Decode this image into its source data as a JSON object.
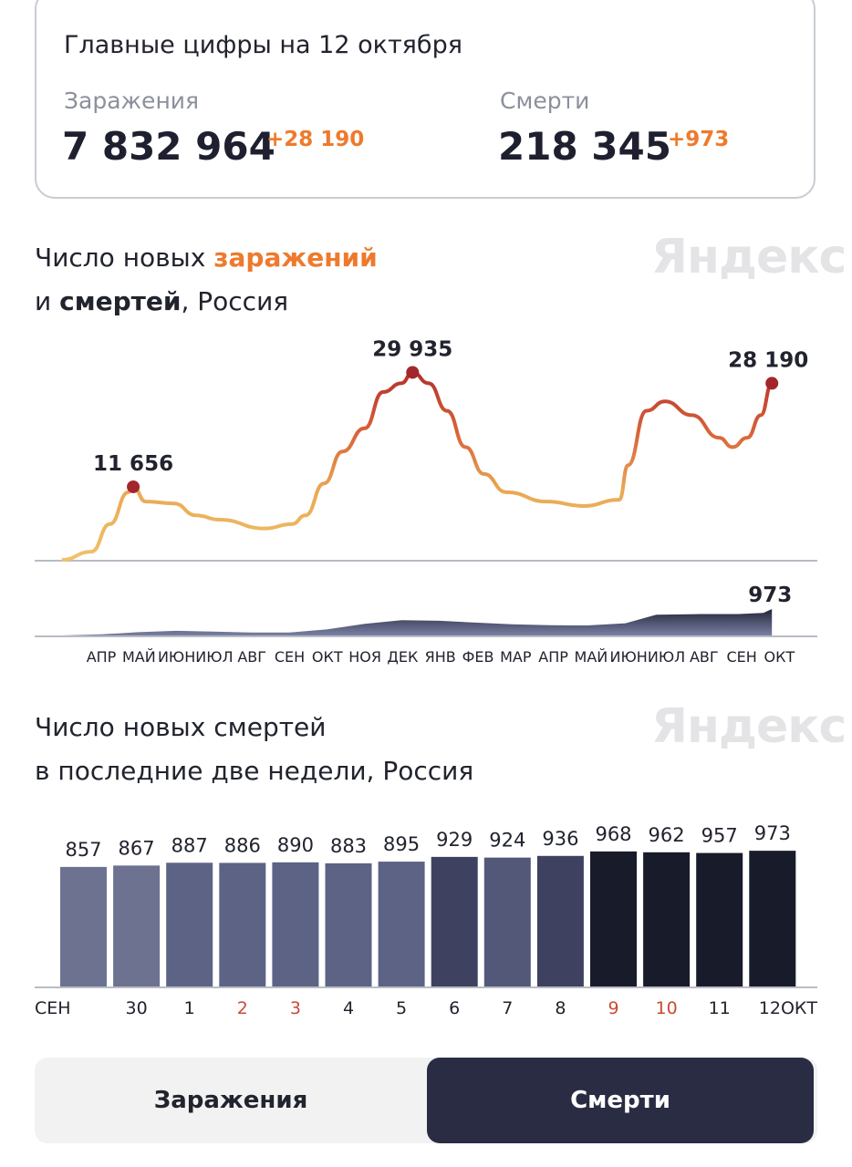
{
  "summary": {
    "title": "Главные цифры на 12 октября",
    "infections_label": "Заражения",
    "infections_total": "7 832 964",
    "infections_delta": "+28 190",
    "deaths_label": "Смерти",
    "deaths_total": "218 345",
    "deaths_delta": "+973"
  },
  "watermark": "Яндекс",
  "chart1_title": {
    "part1": "Число новых ",
    "part2": "заражений",
    "part3": "и ",
    "part4": "смертей",
    "part5": ", Россия"
  },
  "chart2_title": {
    "line1": "Число новых смертей",
    "line2": "в последние две недели, Россия"
  },
  "colors": {
    "accent": "#ee7a2d",
    "line_low": "#e9b865",
    "line_high": "#b8302a",
    "marker": "#a3262a",
    "deaths_area": "#3f4466",
    "active_button": "#2a2c44"
  },
  "chart_data": [
    {
      "type": "line",
      "series": [
        {
          "name": "заражений",
          "points": [
            [
              "2020-03-14",
              0
            ],
            [
              "2020-04-07",
              1300
            ],
            [
              "2020-04-22",
              5700
            ],
            [
              "2020-05-07",
              10800
            ],
            [
              "2020-05-11",
              11656
            ],
            [
              "2020-05-21",
              9300
            ],
            [
              "2020-06-13",
              9000
            ],
            [
              "2020-07-01",
              7100
            ],
            [
              "2020-07-20",
              6400
            ],
            [
              "2020-08-26",
              5000
            ],
            [
              "2020-09-17",
              5700
            ],
            [
              "2020-09-28",
              7100
            ],
            [
              "2020-10-13",
              12200
            ],
            [
              "2020-10-28",
              17300
            ],
            [
              "2020-11-15",
              21000
            ],
            [
              "2020-11-30",
              26800
            ],
            [
              "2020-12-15",
              28200
            ],
            [
              "2020-12-24",
              29935
            ],
            [
              "2021-01-06",
              28200
            ],
            [
              "2021-01-21",
              23800
            ],
            [
              "2021-02-05",
              18000
            ],
            [
              "2021-02-20",
              13700
            ],
            [
              "2021-03-10",
              10800
            ],
            [
              "2021-04-12",
              9300
            ],
            [
              "2021-05-12",
              8600
            ],
            [
              "2021-06-10",
              9600
            ],
            [
              "2021-06-17",
              15100
            ],
            [
              "2021-07-02",
              23800
            ],
            [
              "2021-07-17",
              25300
            ],
            [
              "2021-08-08",
              23100
            ],
            [
              "2021-08-30",
              19500
            ],
            [
              "2021-09-10",
              18000
            ],
            [
              "2021-09-22",
              19500
            ],
            [
              "2021-10-03",
              23100
            ],
            [
              "2021-10-12",
              28190
            ]
          ]
        },
        {
          "name": "смертей",
          "type": "area",
          "points": [
            [
              "2020-03-14",
              0
            ],
            [
              "2020-04-15",
              40
            ],
            [
              "2020-05-15",
              120
            ],
            [
              "2020-06-15",
              170
            ],
            [
              "2020-07-15",
              140
            ],
            [
              "2020-08-15",
              110
            ],
            [
              "2020-09-15",
              110
            ],
            [
              "2020-10-15",
              220
            ],
            [
              "2020-11-15",
              430
            ],
            [
              "2020-12-15",
              560
            ],
            [
              "2021-01-15",
              540
            ],
            [
              "2021-02-15",
              470
            ],
            [
              "2021-03-15",
              410
            ],
            [
              "2021-04-15",
              380
            ],
            [
              "2021-05-15",
              370
            ],
            [
              "2021-06-15",
              450
            ],
            [
              "2021-07-10",
              760
            ],
            [
              "2021-08-15",
              790
            ],
            [
              "2021-09-15",
              790
            ],
            [
              "2021-10-05",
              830
            ],
            [
              "2021-10-12",
              973
            ]
          ]
        }
      ],
      "annotations": [
        {
          "date": "2020-05-11",
          "label": "11 656",
          "series": "заражений"
        },
        {
          "date": "2020-12-24",
          "label": "29 935",
          "series": "заражений"
        },
        {
          "date": "2021-10-12",
          "label": "28 190",
          "series": "заражений"
        },
        {
          "date": "2021-10-12",
          "label": "973",
          "series": "смертей"
        }
      ],
      "x_ticks": [
        "АПР",
        "МАЙ",
        "ИЮН",
        "ИЮЛ",
        "АВГ",
        "СЕН",
        "ОКТ",
        "НОЯ",
        "ДЕК",
        "ЯНВ",
        "ФЕВ",
        "МАР",
        "АПР",
        "МАЙ",
        "ИЮН",
        "ИЮЛ",
        "АВГ",
        "СЕН",
        "ОКТ"
      ],
      "ylim": [
        0,
        30000
      ],
      "grid": false
    },
    {
      "type": "bar",
      "categories": [
        "СЕН",
        "30",
        "1",
        "2",
        "3",
        "4",
        "5",
        "6",
        "7",
        "8",
        "9",
        "10",
        "11",
        "12ОКТ"
      ],
      "category_highlight": [
        false,
        false,
        false,
        true,
        true,
        false,
        false,
        false,
        false,
        false,
        true,
        true,
        false,
        false
      ],
      "values": [
        857,
        867,
        887,
        886,
        890,
        883,
        895,
        929,
        924,
        936,
        968,
        962,
        957,
        973
      ],
      "bar_colors": [
        "#6d7291",
        "#6d7291",
        "#5d6385",
        "#5d6385",
        "#5d6385",
        "#5d6385",
        "#5d6385",
        "#3e4260",
        "#545878",
        "#3e4260",
        "#181b29",
        "#181b29",
        "#181b29",
        "#181b29"
      ],
      "ylim": [
        0,
        1000
      ],
      "highlight_color": "#cc4a35",
      "grid": false
    }
  ],
  "toggle": {
    "infections": "Заражения",
    "deaths": "Смерти",
    "active": "deaths"
  }
}
